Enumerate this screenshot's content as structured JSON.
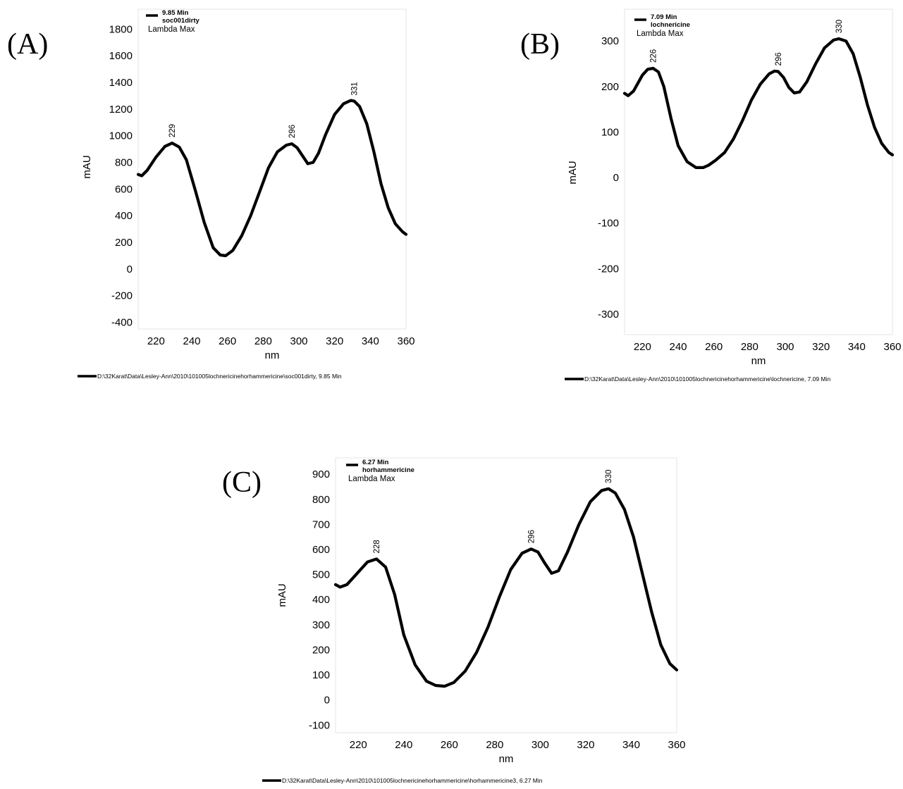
{
  "chart_data": [
    {
      "type": "line",
      "panel_label": "(A)",
      "legend": {
        "time": "9.85 Min",
        "sample": "soc001dirty",
        "note": "Lambda Max"
      },
      "xlabel": "nm",
      "ylabel": "mAU",
      "xlim": [
        210,
        360
      ],
      "ylim": [
        -450,
        1950
      ],
      "xticks": [
        220,
        240,
        260,
        280,
        300,
        320,
        340,
        360
      ],
      "yticks": [
        -400,
        -200,
        0,
        200,
        400,
        600,
        800,
        1000,
        1200,
        1400,
        1600,
        1800
      ],
      "grid": false,
      "series": [
        {
          "x": [
            210,
            212,
            215,
            220,
            225,
            229,
            233,
            237,
            242,
            247,
            252,
            256,
            259,
            263,
            268,
            273,
            278,
            283,
            288,
            293,
            296,
            299,
            302,
            305,
            308,
            311,
            315,
            320,
            325,
            329,
            331,
            334,
            338,
            342,
            346,
            350,
            354,
            358,
            360
          ],
          "y": [
            710,
            700,
            740,
            840,
            920,
            945,
            915,
            820,
            590,
            350,
            160,
            105,
            100,
            140,
            250,
            400,
            580,
            760,
            880,
            930,
            940,
            910,
            850,
            790,
            800,
            870,
            1010,
            1160,
            1240,
            1265,
            1260,
            1220,
            1090,
            880,
            640,
            460,
            340,
            280,
            260
          ]
        }
      ],
      "peaks": [
        {
          "x": 229,
          "label": "229"
        },
        {
          "x": 296,
          "label": "296"
        },
        {
          "x": 331,
          "label": "331"
        }
      ],
      "footer": "D:\\32Karat\\Data\\Lesley-Ann\\2010\\101005lochnericinehorhammericine\\soc001dirty, 9.85 Min"
    },
    {
      "type": "line",
      "panel_label": "(B)",
      "legend": {
        "time": "7.09 Min",
        "sample": "lochnericine",
        "note": "Lambda Max"
      },
      "xlabel": "nm",
      "ylabel": "mAU",
      "xlim": [
        210,
        360
      ],
      "ylim": [
        -345,
        370
      ],
      "xticks": [
        220,
        240,
        260,
        280,
        300,
        320,
        340,
        360
      ],
      "yticks": [
        -300,
        -200,
        -100,
        0,
        100,
        200,
        300
      ],
      "grid": false,
      "series": [
        {
          "x": [
            210,
            212,
            215,
            220,
            223,
            226,
            229,
            232,
            236,
            240,
            245,
            250,
            254,
            257,
            261,
            266,
            271,
            276,
            281,
            286,
            291,
            294,
            296,
            299,
            302,
            305,
            308,
            312,
            317,
            322,
            327,
            330,
            334,
            338,
            342,
            346,
            350,
            354,
            358,
            360
          ],
          "y": [
            185,
            180,
            190,
            225,
            238,
            240,
            232,
            200,
            130,
            70,
            35,
            22,
            22,
            27,
            38,
            55,
            85,
            125,
            170,
            205,
            228,
            234,
            233,
            220,
            198,
            186,
            188,
            210,
            250,
            285,
            302,
            305,
            300,
            272,
            220,
            160,
            110,
            75,
            55,
            50
          ]
        }
      ],
      "peaks": [
        {
          "x": 226,
          "label": "226"
        },
        {
          "x": 296,
          "label": "296"
        },
        {
          "x": 330,
          "label": "330"
        }
      ],
      "footer": "D:\\32Karat\\Data\\Lesley-Ann\\2010\\101005lochnericinehorhammericine\\lochnericine, 7.09 Min"
    },
    {
      "type": "line",
      "panel_label": "(C)",
      "legend": {
        "time": "6.27 Min",
        "sample": "horhammericine",
        "note": "Lambda Max"
      },
      "xlabel": "nm",
      "ylabel": "mAU",
      "xlim": [
        210,
        360
      ],
      "ylim": [
        -130,
        965
      ],
      "xticks": [
        220,
        240,
        260,
        280,
        300,
        320,
        340,
        360
      ],
      "yticks": [
        -100,
        0,
        100,
        200,
        300,
        400,
        500,
        600,
        700,
        800,
        900
      ],
      "grid": false,
      "series": [
        {
          "x": [
            210,
            212,
            215,
            220,
            224,
            228,
            232,
            236,
            240,
            245,
            250,
            254,
            258,
            262,
            267,
            272,
            277,
            282,
            287,
            292,
            296,
            299,
            302,
            305,
            308,
            312,
            317,
            322,
            327,
            330,
            333,
            337,
            341,
            345,
            349,
            353,
            357,
            360
          ],
          "y": [
            460,
            450,
            460,
            510,
            550,
            562,
            530,
            420,
            260,
            140,
            75,
            58,
            55,
            70,
            115,
            190,
            290,
            410,
            520,
            585,
            602,
            590,
            545,
            505,
            515,
            590,
            700,
            790,
            835,
            842,
            825,
            760,
            650,
            500,
            350,
            220,
            145,
            120
          ]
        }
      ],
      "peaks": [
        {
          "x": 228,
          "label": "228"
        },
        {
          "x": 296,
          "label": "296"
        },
        {
          "x": 330,
          "label": "330"
        }
      ],
      "footer": "D:\\32Karat\\Data\\Lesley-Ann\\2010\\101005lochnericinehorhammericine\\horhammericine3, 6.27 Min"
    }
  ]
}
